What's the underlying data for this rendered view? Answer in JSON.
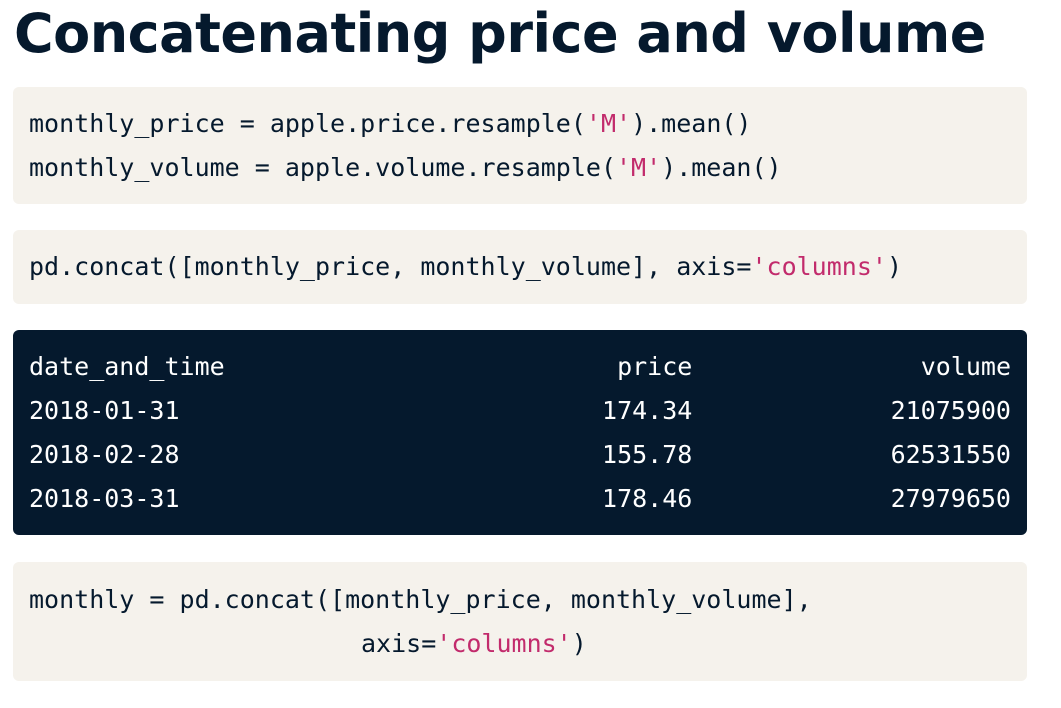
{
  "title": "Concatenating price and volume",
  "code_blocks": [
    {
      "lines": [
        {
          "code": "monthly_price = apple.price.resample(",
          "string": "'M'",
          "rest": ").mean()"
        },
        {
          "code": "monthly_volume = apple.volume.resample(",
          "string": "'M'",
          "rest": ").mean()"
        }
      ]
    },
    {
      "lines": [
        {
          "code": "pd.concat([monthly_price, monthly_volume], axis=",
          "string": "'columns'",
          "rest": ")"
        }
      ]
    }
  ],
  "output": {
    "header": [
      "date_and_time",
      "price",
      "volume"
    ],
    "rows": [
      [
        "2018-01-31",
        174.34,
        21075900
      ],
      [
        "2018-02-28",
        155.78,
        62531550
      ],
      [
        "2018-03-31",
        178.46,
        27979650
      ]
    ]
  },
  "final_block": {
    "lines": [
      {
        "code": "monthly = pd.concat([monthly_price, monthly_volume],"
      },
      {
        "code": "axis=",
        "string": "'columns'",
        "rest": ")"
      }
    ]
  }
}
